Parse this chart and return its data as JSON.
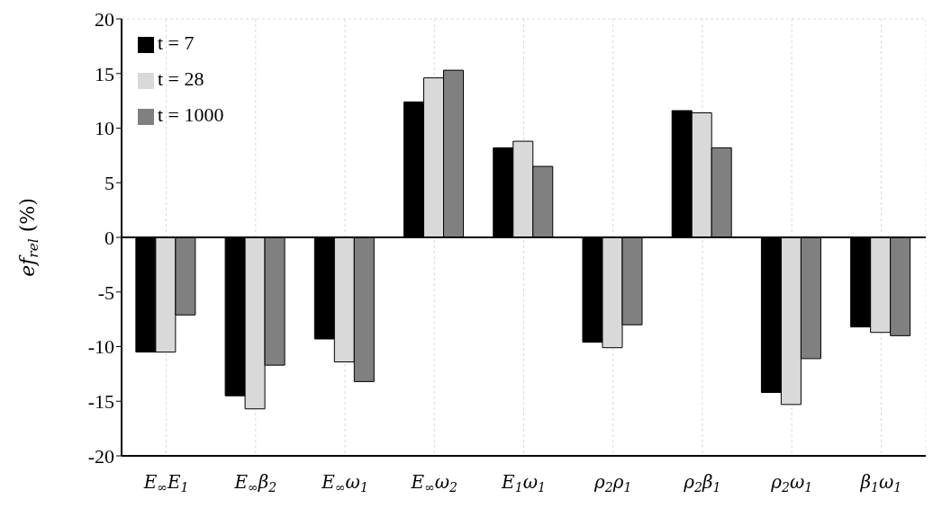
{
  "chart_data": {
    "type": "bar",
    "ylabel": "ef$_{rel}$ (%)",
    "categories": [
      "E$_{∞}$E$_{1}$",
      "E$_{∞}$β$_{2}$",
      "E$_{∞}$ω$_{1}$",
      "E$_{∞}$ω$_{2}$",
      "E$_{1}$ω$_{1}$",
      "ρ$_{2}$ρ$_{1}$",
      "ρ$_{2}$β$_{1}$",
      "ρ$_{2}$ω$_{1}$",
      "β$_{1}$ω$_{1}$"
    ],
    "series": [
      {
        "name": "t = 7",
        "color": "#000000",
        "values": [
          -10.5,
          -14.5,
          -9.3,
          12.4,
          8.2,
          -9.6,
          11.6,
          -14.2,
          -8.2
        ]
      },
      {
        "name": "t = 28",
        "color": "#d9d9d9",
        "values": [
          -10.5,
          -15.7,
          -11.4,
          14.6,
          8.8,
          -10.1,
          11.4,
          -15.3,
          -8.7
        ]
      },
      {
        "name": "t = 1000",
        "color": "#808080",
        "values": [
          -7.1,
          -11.7,
          -13.2,
          15.3,
          6.5,
          -8.0,
          8.2,
          -11.1,
          -9.0
        ]
      }
    ],
    "ylim": [
      -20,
      20
    ],
    "yticks": [
      -20,
      -15,
      -10,
      -5,
      0,
      5,
      10,
      15,
      20
    ],
    "grid": true,
    "legend": "top left"
  }
}
